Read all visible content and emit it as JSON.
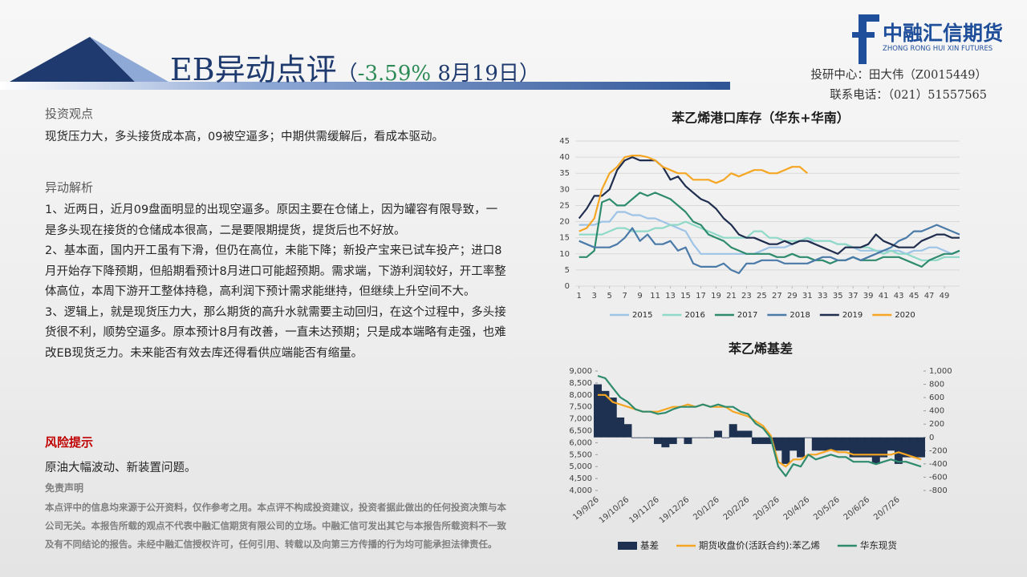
{
  "header": {
    "title": "EB异动点评",
    "subtitle_open": "（",
    "change": "-3.59%",
    "subtitle_rest": " 8月19日）",
    "logo_name": "中融汇信期货",
    "logo_en": "ZHONG RONG HUI XIN FUTURES",
    "contact": [
      "投研中心：田大伟（Z0015449）",
      "联系电话：（021）51557565"
    ]
  },
  "body": {
    "view_heading": "投资观点",
    "view_text": "现货压力大，多头接货成本高，09被空逼多；中期供需缓解后，看成本驱动。",
    "analysis_heading": "异动解析",
    "analysis": [
      "1、近两日，近月09盘面明显的出现空逼多。原因主要在仓储上，因为罐容有限导致，一是多头现在接货的仓储成本很高，二是要限期提货，提货后也不好放。",
      "2、基本面，国内开工虽有下滑，但仍在高位，未能下降；新投产宝来已试车投产；进口8月开始存下降预期，但船期看预计8月进口可能超预期。需求端，下游利润较好，开工率整体高位，本周下游开工整体持稳，高利润下预计需求能继持，但继续上升空间不大。",
      "3、逻辑上，就是现货压力大，那么期货的高升水就需要主动回归，在这个过程中，多头接货很不利，顺势空逼多。原本预计8月有改善，一直未达预期；只是成本端略有走强，也难改EB现货乏力。未来能否有效去库还得看供应端能否有缩量。"
    ],
    "risk_heading": "风险提示",
    "risk_text": "原油大幅波动、新装置问题。",
    "disclaimer_heading": "免责声明",
    "disclaimer_text": "本点评中的信息均来源于公开资料，仅作参考之用。本点评不构成投资建议，投资者据此做出的任何投资决策与本公司无关。本报告所载的观点不代表中融汇信期货有限公司的立场。中融汇信可发出其它与本报告所载资料不一致及有不同结论的报告。未经中融汇信授权许可，任何引用、转载以及向第三方传播的行为均可能承担法律责任。"
  },
  "chart_data": [
    {
      "type": "line",
      "title": "苯乙烯港口库存（华东+华南）",
      "x": [
        1,
        2,
        3,
        4,
        5,
        6,
        7,
        8,
        9,
        10,
        11,
        12,
        13,
        14,
        15,
        16,
        17,
        18,
        19,
        20,
        21,
        22,
        23,
        24,
        25,
        26,
        27,
        28,
        29,
        30,
        31,
        32,
        33,
        34,
        35,
        36,
        37,
        38,
        39,
        40,
        41,
        42,
        43,
        44,
        45,
        46,
        47,
        48,
        49,
        50,
        51
      ],
      "xlim": [
        0.5,
        51
      ],
      "xticks": [
        1,
        3,
        5,
        7,
        9,
        11,
        13,
        15,
        17,
        19,
        21,
        23,
        25,
        27,
        29,
        31,
        33,
        35,
        37,
        39,
        41,
        43,
        45,
        47,
        49
      ],
      "ylim": [
        0,
        45
      ],
      "yticks": [
        0,
        5,
        10,
        15,
        20,
        25,
        30,
        35,
        40,
        45
      ],
      "grid": true,
      "legend": "bottom",
      "series": [
        {
          "name": "2015",
          "color": "#9dc3e6",
          "values": [
            19,
            19,
            19,
            20,
            20,
            23,
            23,
            22,
            22,
            21,
            21,
            20,
            19,
            18,
            17,
            13,
            10,
            10,
            10,
            10,
            10,
            10,
            10,
            10,
            11,
            12,
            12,
            12,
            13,
            14,
            14,
            14,
            14,
            14,
            13,
            13,
            12,
            11,
            11,
            11,
            11,
            11,
            11,
            10,
            11,
            11,
            12,
            12,
            11,
            10,
            11
          ]
        },
        {
          "name": "2016",
          "color": "#8fd9c8",
          "values": [
            16,
            16,
            16,
            16,
            17,
            18,
            18,
            17,
            17,
            17,
            18,
            18,
            19,
            19,
            20,
            19,
            18,
            17,
            16,
            15,
            15,
            15,
            15,
            17,
            17,
            15,
            15,
            14,
            14,
            14,
            15,
            14,
            14,
            14,
            13,
            13,
            12,
            12,
            12,
            11,
            10,
            11,
            10,
            10,
            9,
            8,
            8,
            8,
            9,
            9,
            9
          ]
        },
        {
          "name": "2017",
          "color": "#2e8b6e",
          "values": [
            9,
            9,
            11,
            26,
            27,
            25,
            25,
            27,
            29,
            28,
            29,
            28,
            27,
            25,
            23,
            20,
            19,
            16,
            15,
            14,
            12,
            11,
            10,
            10,
            10,
            10,
            9,
            9,
            10,
            9,
            9,
            8,
            8,
            7,
            8,
            8,
            9,
            8,
            8,
            8,
            9,
            9,
            9,
            8,
            7,
            6,
            8,
            9,
            10,
            10,
            11
          ]
        },
        {
          "name": "2018",
          "color": "#4a7aa8",
          "values": [
            14,
            13,
            12,
            12,
            12,
            13,
            15,
            18,
            14,
            16,
            13,
            13,
            14,
            11,
            12,
            7,
            6,
            6,
            6,
            7,
            5,
            4,
            7,
            7,
            8,
            8,
            8,
            7,
            7,
            7,
            7,
            8,
            9,
            9,
            8,
            8,
            9,
            8,
            9,
            10,
            11,
            12,
            14,
            15,
            17,
            17,
            18,
            19,
            18,
            17,
            16
          ]
        },
        {
          "name": "2019",
          "color": "#1f2d4e",
          "values": [
            21,
            24,
            28,
            28,
            30,
            36,
            39,
            40,
            39,
            39,
            39,
            37,
            33,
            34,
            31,
            29,
            27,
            26,
            24,
            21,
            19,
            16,
            15,
            15,
            14,
            13,
            13,
            14,
            13,
            14,
            14,
            13,
            12,
            11,
            10,
            12,
            12,
            12,
            13,
            16,
            14,
            13,
            12,
            12,
            12,
            14,
            15,
            16,
            16,
            15,
            15
          ]
        },
        {
          "name": "2020",
          "color": "#f5a623",
          "values": [
            17,
            18,
            21,
            30,
            35,
            37,
            40,
            40.5,
            40.5,
            40,
            39,
            37,
            36,
            35,
            35,
            33,
            33,
            33,
            32,
            33,
            35,
            34,
            35,
            36,
            36,
            35,
            35,
            36,
            37,
            37,
            35,
            null,
            null,
            null,
            null,
            null,
            null,
            null,
            null,
            null,
            null,
            null,
            null,
            null,
            null,
            null,
            null,
            null,
            null,
            null,
            null
          ]
        }
      ]
    },
    {
      "type": "line",
      "title": "苯乙烯基差",
      "categories": [
        "19/9/26",
        null,
        null,
        null,
        "19/10/26",
        null,
        null,
        null,
        "19/11/26",
        null,
        null,
        null,
        "19/12/26",
        null,
        null,
        null,
        "20/1/26",
        null,
        null,
        null,
        "20/2/26",
        null,
        null,
        null,
        "20/3/26",
        null,
        null,
        null,
        "20/4/26",
        null,
        null,
        null,
        "20/5/26",
        null,
        null,
        null,
        "20/6/26",
        null,
        null,
        null,
        "20/7/26",
        null,
        null,
        null
      ],
      "ylim": [
        4000,
        9000
      ],
      "yticks": [
        {
          "value": 4000,
          "label": "4,000"
        },
        {
          "value": 4500,
          "label": "4,500"
        },
        {
          "value": 5000,
          "label": "5,000"
        },
        {
          "value": 5500,
          "label": "5,500"
        },
        {
          "value": 6000,
          "label": "6,000"
        },
        {
          "value": 6500,
          "label": "6,500"
        },
        {
          "value": 7000,
          "label": "7,000"
        },
        {
          "value": 7500,
          "label": "7,500"
        },
        {
          "value": 8000,
          "label": "8,000"
        },
        {
          "value": 8500,
          "label": "8,500"
        },
        {
          "value": 9000,
          "label": "9,000"
        }
      ],
      "y2lim": [
        -800,
        1000
      ],
      "y2ticks": [
        -800,
        -600,
        -400,
        -200,
        0,
        200,
        400,
        600,
        800,
        {
          "value": 1000,
          "label": "1,000"
        }
      ],
      "grid": false,
      "legend": "bottom",
      "series": [
        {
          "name": "基差",
          "type": "area",
          "axis": "y2",
          "color": "#1f3150",
          "values": [
            800,
            700,
            600,
            300,
            200,
            0,
            0,
            0,
            -100,
            -150,
            -100,
            0,
            -100,
            0,
            0,
            0,
            100,
            0,
            200,
            100,
            100,
            -100,
            -100,
            -100,
            -200,
            -400,
            -200,
            -300,
            0,
            -200,
            -200,
            -200,
            -200,
            -200,
            -300,
            -300,
            -300,
            -400,
            -300,
            -200,
            -400,
            -300,
            -300,
            -300
          ]
        },
        {
          "name": "期货收盘价(活跃合约):苯乙烯",
          "color": "#f5a623",
          "values": [
            8000,
            8000,
            7700,
            7600,
            7500,
            7400,
            7300,
            7300,
            7300,
            7400,
            7500,
            7500,
            7600,
            7500,
            7600,
            7500,
            7500,
            7500,
            7300,
            7200,
            7100,
            6900,
            6700,
            6300,
            5200,
            5000,
            5300,
            5300,
            5500,
            5500,
            5600,
            5700,
            5600,
            5600,
            5500,
            5500,
            5500,
            5500,
            5500,
            5500,
            5600,
            5500,
            5400,
            5300
          ]
        },
        {
          "name": "华东现货",
          "color": "#2e8b6e",
          "values": [
            8800,
            8700,
            8300,
            7900,
            7700,
            7400,
            7300,
            7300,
            7200,
            7250,
            7400,
            7500,
            7500,
            7500,
            7600,
            7500,
            7600,
            7500,
            7500,
            7300,
            7200,
            6800,
            6600,
            6200,
            5000,
            4600,
            5100,
            5000,
            5500,
            5300,
            5400,
            5500,
            5400,
            5400,
            5200,
            5200,
            5200,
            5100,
            5200,
            5300,
            5200,
            5200,
            5100,
            5000
          ]
        }
      ]
    }
  ]
}
